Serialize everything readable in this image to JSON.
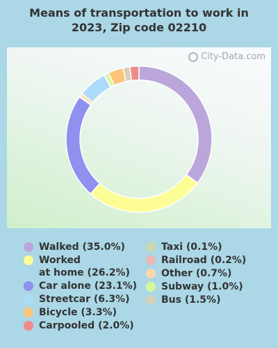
{
  "title": "Means of transportation to work in 2023, Zip code 02210",
  "watermark": "City-Data.com",
  "chart_data": {
    "type": "pie",
    "title": "Means of transportation to work in 2023, Zip code 02210",
    "subtype": "donut",
    "legend_placement": "bottom",
    "slices": [
      {
        "name": "Walked",
        "label": "Walked (35.0%)",
        "value": 35.0,
        "color": "#bba6db"
      },
      {
        "name": "Worked at home",
        "label": "Worked\nat home (26.2%)",
        "value": 26.2,
        "color": "#fdfd96"
      },
      {
        "name": "Car alone",
        "label": "Car alone (23.1%)",
        "value": 23.1,
        "color": "#9090ee"
      },
      {
        "name": "Railroad",
        "label": "Railroad (0.2%)",
        "value": 0.2,
        "color": "#eab6b6"
      },
      {
        "name": "Other",
        "label": "Other (0.7%)",
        "value": 0.7,
        "color": "#fcd8a8"
      },
      {
        "name": "Streetcar",
        "label": "Streetcar (6.3%)",
        "value": 6.3,
        "color": "#addbfa"
      },
      {
        "name": "Taxi",
        "label": "Taxi (0.1%)",
        "value": 0.1,
        "color": "#c8d9b0"
      },
      {
        "name": "Subway",
        "label": "Subway (1.0%)",
        "value": 1.0,
        "color": "#d8f79a"
      },
      {
        "name": "Bicycle",
        "label": "Bicycle (3.3%)",
        "value": 3.3,
        "color": "#fcc479"
      },
      {
        "name": "Bus",
        "label": "Bus (1.5%)",
        "value": 1.5,
        "color": "#d6d0b8"
      },
      {
        "name": "Carpooled",
        "label": "Carpooled (2.0%)",
        "value": 2.0,
        "color": "#ee8a8a"
      }
    ],
    "legend_left": [
      "Walked",
      "Worked at home",
      "Car alone",
      "Streetcar",
      "Bicycle",
      "Carpooled"
    ],
    "legend_right": [
      "Taxi",
      "Railroad",
      "Other",
      "Subway",
      "Bus"
    ]
  }
}
